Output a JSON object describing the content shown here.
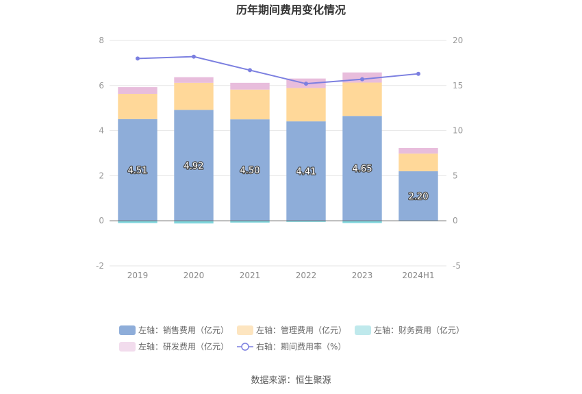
{
  "chart_data": {
    "type": "bar",
    "title": "历年期间费用变化情况",
    "categories": [
      "2019",
      "2020",
      "2021",
      "2022",
      "2023",
      "2024H1"
    ],
    "y_left": {
      "ticks": [
        8,
        6,
        4,
        2,
        0,
        -2
      ],
      "ylim": [
        -2,
        8
      ]
    },
    "y_right": {
      "ticks": [
        20,
        15,
        10,
        5,
        0,
        -5
      ],
      "ylim": [
        -5,
        20
      ]
    },
    "series": [
      {
        "name": "左轴：销售费用（亿元）",
        "axis": "left",
        "color": "#8eadd9",
        "values": [
          4.51,
          4.92,
          4.5,
          4.41,
          4.65,
          2.2
        ],
        "labels": [
          "4.51",
          "4.92",
          "4.50",
          "4.41",
          "4.65",
          "2.20"
        ]
      },
      {
        "name": "左轴：管理费用（亿元）",
        "axis": "left",
        "color": "#ffd899",
        "values": [
          1.12,
          1.2,
          1.32,
          1.48,
          1.48,
          0.78
        ]
      },
      {
        "name": "左轴：财务费用（亿元）",
        "axis": "left",
        "color": "#7fd6dd",
        "values": [
          -0.1,
          -0.12,
          -0.08,
          -0.05,
          -0.1,
          -0.02
        ]
      },
      {
        "name": "左轴：研发费用（亿元）",
        "axis": "left",
        "color": "#e8bddc",
        "values": [
          0.3,
          0.25,
          0.3,
          0.42,
          0.45,
          0.25
        ]
      },
      {
        "name": "右轴：期间费用率（%）",
        "axis": "right",
        "type": "line",
        "color": "#7b7fe0",
        "values": [
          18.0,
          18.2,
          16.7,
          15.2,
          15.7,
          16.3
        ]
      }
    ],
    "grid": true,
    "legend_position": "bottom"
  },
  "source_text": "数据来源：恒生聚源"
}
